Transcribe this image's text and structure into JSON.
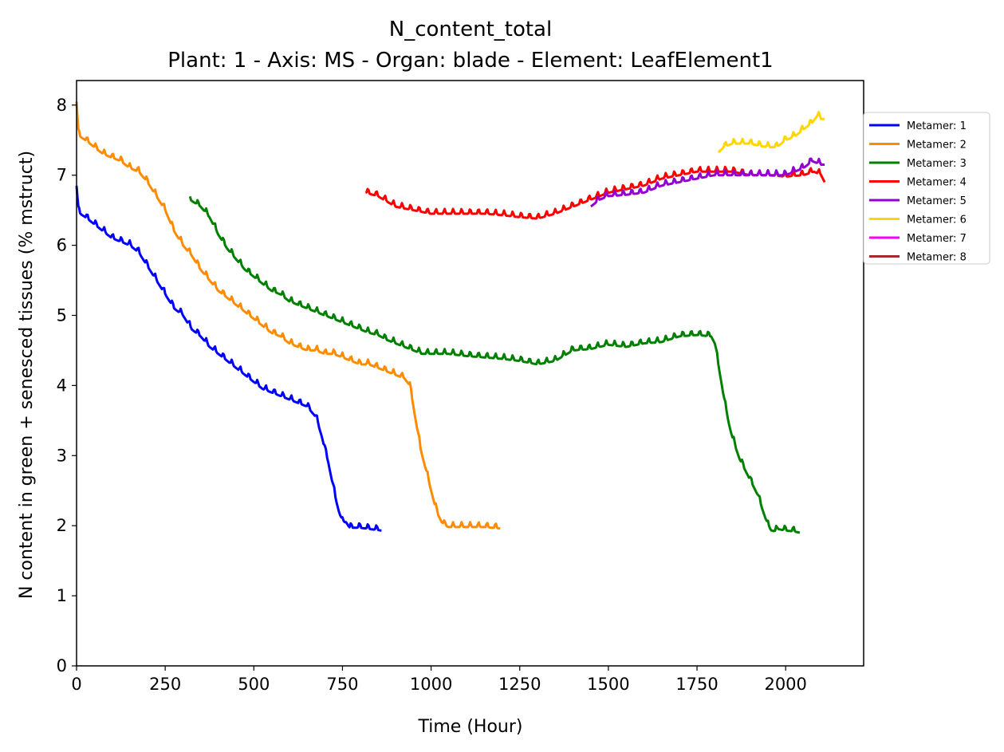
{
  "chart_data": {
    "type": "line",
    "title": "N_content_total",
    "subtitle": "Plant: 1 - Axis: MS - Organ: blade - Element: LeafElement1",
    "xlabel": "Time (Hour)",
    "ylabel": "N content in green + senesced tissues (% mstruct)",
    "xlim": [
      0,
      2220
    ],
    "ylim": [
      0,
      8.35
    ],
    "xticks": [
      0,
      250,
      500,
      750,
      1000,
      1250,
      1500,
      1750,
      2000
    ],
    "yticks": [
      0,
      1,
      2,
      3,
      4,
      5,
      6,
      7,
      8
    ],
    "grid": false,
    "legend_position": "outside-right-top",
    "series": [
      {
        "name": "Metamer: 1",
        "color": "#0000ff",
        "x": [
          0,
          5,
          10,
          25,
          50,
          75,
          100,
          125,
          150,
          175,
          200,
          225,
          250,
          275,
          300,
          325,
          350,
          375,
          400,
          425,
          450,
          475,
          500,
          525,
          550,
          575,
          600,
          625,
          650,
          675,
          690,
          700,
          710,
          720,
          730,
          740,
          750,
          760,
          770,
          800,
          830,
          860
        ],
        "y": [
          6.85,
          6.5,
          6.45,
          6.4,
          6.3,
          6.2,
          6.1,
          6.05,
          6.0,
          5.9,
          5.7,
          5.5,
          5.3,
          5.1,
          5.0,
          4.8,
          4.7,
          4.55,
          4.45,
          4.35,
          4.25,
          4.15,
          4.05,
          3.95,
          3.9,
          3.85,
          3.8,
          3.75,
          3.7,
          3.55,
          3.3,
          3.1,
          2.9,
          2.65,
          2.4,
          2.2,
          2.05,
          2.05,
          1.97,
          1.97,
          1.95,
          1.93
        ]
      },
      {
        "name": "Metamer: 2",
        "color": "#ff8c00",
        "x": [
          0,
          5,
          10,
          25,
          50,
          75,
          100,
          125,
          150,
          175,
          200,
          225,
          250,
          275,
          300,
          325,
          350,
          375,
          400,
          425,
          450,
          475,
          500,
          525,
          550,
          575,
          600,
          625,
          650,
          675,
          700,
          725,
          750,
          775,
          800,
          825,
          850,
          875,
          900,
          925,
          940,
          950,
          960,
          970,
          980,
          990,
          1000,
          1010,
          1020,
          1030,
          1040,
          1050,
          1080,
          1110,
          1150,
          1195
        ],
        "y": [
          8.05,
          7.6,
          7.55,
          7.5,
          7.4,
          7.3,
          7.25,
          7.2,
          7.1,
          7.05,
          6.9,
          6.7,
          6.5,
          6.2,
          6.0,
          5.85,
          5.65,
          5.5,
          5.35,
          5.25,
          5.15,
          5.05,
          4.95,
          4.85,
          4.75,
          4.7,
          4.6,
          4.55,
          4.5,
          4.5,
          4.45,
          4.45,
          4.4,
          4.35,
          4.3,
          4.3,
          4.25,
          4.2,
          4.15,
          4.1,
          4.0,
          3.7,
          3.4,
          3.1,
          2.9,
          2.7,
          2.5,
          2.3,
          2.15,
          2.05,
          2.0,
          1.98,
          1.98,
          1.98,
          1.98,
          1.96
        ]
      },
      {
        "name": "Metamer: 3",
        "color": "#008000",
        "x": [
          320,
          350,
          375,
          400,
          425,
          450,
          475,
          500,
          525,
          550,
          575,
          600,
          625,
          650,
          675,
          700,
          725,
          750,
          775,
          800,
          825,
          850,
          875,
          900,
          925,
          950,
          975,
          1000,
          1050,
          1100,
          1150,
          1200,
          1250,
          1300,
          1350,
          1400,
          1450,
          1500,
          1550,
          1600,
          1650,
          1700,
          1750,
          1790,
          1800,
          1810,
          1820,
          1830,
          1840,
          1850,
          1860,
          1870,
          1880,
          1890,
          1900,
          1910,
          1920,
          1930,
          1940,
          1950,
          1960,
          1970,
          1980,
          2000,
          2020,
          2040
        ],
        "y": [
          6.65,
          6.55,
          6.4,
          6.15,
          5.95,
          5.8,
          5.65,
          5.55,
          5.45,
          5.35,
          5.3,
          5.2,
          5.15,
          5.1,
          5.05,
          5.0,
          4.95,
          4.9,
          4.85,
          4.8,
          4.75,
          4.72,
          4.65,
          4.6,
          4.55,
          4.5,
          4.45,
          4.45,
          4.45,
          4.42,
          4.4,
          4.38,
          4.35,
          4.3,
          4.35,
          4.5,
          4.52,
          4.58,
          4.55,
          4.6,
          4.62,
          4.7,
          4.72,
          4.7,
          4.6,
          4.3,
          4.0,
          3.7,
          3.45,
          3.25,
          3.1,
          2.95,
          2.85,
          2.75,
          2.65,
          2.55,
          2.45,
          2.3,
          2.15,
          2.0,
          1.93,
          1.92,
          1.95,
          1.93,
          1.92,
          1.9
        ]
      },
      {
        "name": "Metamer: 4",
        "color": "#ff0000",
        "x": [
          815,
          850,
          900,
          950,
          1000,
          1050,
          1100,
          1150,
          1200,
          1250,
          1300,
          1350,
          1400,
          1450,
          1500,
          1550,
          1600,
          1650,
          1700,
          1750,
          1800,
          1850,
          1900,
          1950,
          2000,
          2050,
          2080,
          2100,
          2110
        ],
        "y": [
          6.75,
          6.7,
          6.55,
          6.5,
          6.45,
          6.45,
          6.45,
          6.45,
          6.43,
          6.4,
          6.38,
          6.45,
          6.55,
          6.65,
          6.75,
          6.8,
          6.85,
          6.95,
          7.0,
          7.05,
          7.05,
          7.05,
          7.0,
          7.0,
          6.98,
          7.0,
          7.05,
          7.0,
          6.9
        ]
      },
      {
        "name": "Metamer: 5",
        "color": "#9400d3",
        "x": [
          1450,
          1475,
          1500,
          1550,
          1600,
          1650,
          1700,
          1750,
          1800,
          1850,
          1900,
          1950,
          2000,
          2025,
          2050,
          2075,
          2100,
          2110
        ],
        "y": [
          6.55,
          6.65,
          6.7,
          6.72,
          6.75,
          6.85,
          6.9,
          6.95,
          7.0,
          7.0,
          7.0,
          7.0,
          7.0,
          7.05,
          7.1,
          7.2,
          7.15,
          7.15
        ]
      },
      {
        "name": "Metamer: 6",
        "color": "#ffd700",
        "x": [
          1810,
          1825,
          1850,
          1875,
          1900,
          1925,
          1950,
          1975,
          2000,
          2025,
          2050,
          2075,
          2090,
          2100,
          2110
        ],
        "y": [
          7.32,
          7.4,
          7.45,
          7.45,
          7.45,
          7.42,
          7.4,
          7.4,
          7.5,
          7.55,
          7.65,
          7.75,
          7.85,
          7.8,
          7.8
        ]
      },
      {
        "name": "Metamer: 7",
        "color": "#ff00ff",
        "x": [],
        "y": []
      },
      {
        "name": "Metamer: 8",
        "color": "#a52a2a",
        "x": [],
        "y": []
      }
    ]
  }
}
